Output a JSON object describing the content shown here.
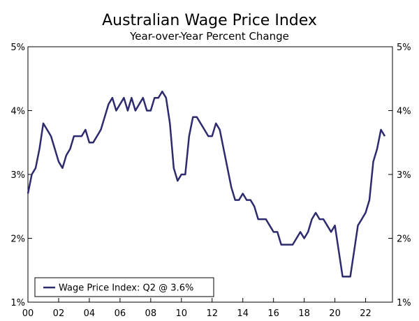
{
  "chart_data": {
    "type": "line",
    "title": "Australian Wage Price Index",
    "subtitle": "Year-over-Year Percent Change",
    "xlabel": "",
    "ylabel": "",
    "xlim": [
      2000.0,
      2023.75
    ],
    "ylim": [
      1,
      5
    ],
    "y_ticks": [
      1,
      2,
      3,
      4,
      5
    ],
    "y_tick_labels": [
      "1%",
      "2%",
      "3%",
      "4%",
      "5%"
    ],
    "x_ticks": [
      2000,
      2002,
      2004,
      2006,
      2008,
      2010,
      2012,
      2014,
      2016,
      2018,
      2020,
      2022
    ],
    "x_tick_labels": [
      "00",
      "02",
      "04",
      "06",
      "08",
      "10",
      "12",
      "14",
      "16",
      "18",
      "20",
      "22"
    ],
    "grid": false,
    "legend": {
      "position": "bottom-left"
    },
    "colors": {
      "series": "#2e2a6e",
      "axis": "#000000"
    },
    "series": [
      {
        "name": "Wage Price Index: Q2 @ 3.6%",
        "x": [
          2000.0,
          2000.25,
          2000.5,
          2000.75,
          2001.0,
          2001.25,
          2001.5,
          2001.75,
          2002.0,
          2002.25,
          2002.5,
          2002.75,
          2003.0,
          2003.25,
          2003.5,
          2003.75,
          2004.0,
          2004.25,
          2004.5,
          2004.75,
          2005.0,
          2005.25,
          2005.5,
          2005.75,
          2006.0,
          2006.25,
          2006.5,
          2006.75,
          2007.0,
          2007.25,
          2007.5,
          2007.75,
          2008.0,
          2008.25,
          2008.5,
          2008.75,
          2009.0,
          2009.25,
          2009.5,
          2009.75,
          2010.0,
          2010.25,
          2010.5,
          2010.75,
          2011.0,
          2011.25,
          2011.5,
          2011.75,
          2012.0,
          2012.25,
          2012.5,
          2012.75,
          2013.0,
          2013.25,
          2013.5,
          2013.75,
          2014.0,
          2014.25,
          2014.5,
          2014.75,
          2015.0,
          2015.25,
          2015.5,
          2015.75,
          2016.0,
          2016.25,
          2016.5,
          2016.75,
          2017.0,
          2017.25,
          2017.5,
          2017.75,
          2018.0,
          2018.25,
          2018.5,
          2018.75,
          2019.0,
          2019.25,
          2019.5,
          2019.75,
          2020.0,
          2020.25,
          2020.5,
          2020.75,
          2021.0,
          2021.25,
          2021.5,
          2021.75,
          2022.0,
          2022.25,
          2022.5,
          2022.75,
          2023.0,
          2023.25
        ],
        "values": [
          2.7,
          3.0,
          3.1,
          3.4,
          3.8,
          3.7,
          3.6,
          3.4,
          3.2,
          3.1,
          3.3,
          3.4,
          3.6,
          3.6,
          3.6,
          3.7,
          3.5,
          3.5,
          3.6,
          3.7,
          3.9,
          4.1,
          4.2,
          4.0,
          4.1,
          4.2,
          4.0,
          4.2,
          4.0,
          4.1,
          4.2,
          4.0,
          4.0,
          4.2,
          4.2,
          4.3,
          4.2,
          3.8,
          3.1,
          2.9,
          3.0,
          3.0,
          3.6,
          3.9,
          3.9,
          3.8,
          3.7,
          3.6,
          3.6,
          3.8,
          3.7,
          3.4,
          3.1,
          2.8,
          2.6,
          2.6,
          2.7,
          2.6,
          2.6,
          2.5,
          2.3,
          2.3,
          2.3,
          2.2,
          2.1,
          2.1,
          1.9,
          1.9,
          1.9,
          1.9,
          2.0,
          2.1,
          2.0,
          2.1,
          2.3,
          2.4,
          2.3,
          2.3,
          2.2,
          2.1,
          2.2,
          1.8,
          1.4,
          1.4,
          1.4,
          1.8,
          2.2,
          2.3,
          2.4,
          2.6,
          3.2,
          3.4,
          3.7,
          3.6
        ]
      }
    ]
  }
}
